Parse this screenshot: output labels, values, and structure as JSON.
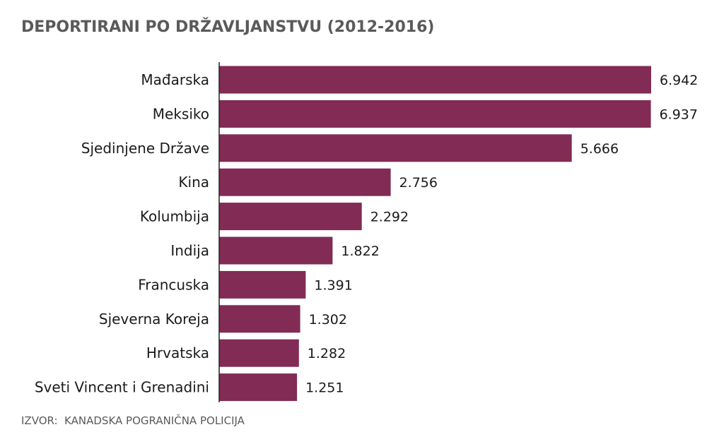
{
  "chart_data": {
    "type": "bar",
    "orientation": "horizontal",
    "title": "DEPORTIRANI PO DRŽAVLJANSTVU (2012-2016)",
    "categories": [
      "Mađarska",
      "Meksiko",
      "Sjedinjene Države",
      "Kina",
      "Kolumbija",
      "Indija",
      "Francuska",
      "Sjeverna Koreja",
      "Hrvatska",
      "Sveti Vincent i Grenadini"
    ],
    "values": [
      6942,
      6937,
      5666,
      2756,
      2292,
      1822,
      1391,
      1302,
      1282,
      1251
    ],
    "value_labels": [
      "6.942",
      "6.937",
      "5.666",
      "2.756",
      "2.292",
      "1.822",
      "1.391",
      "1.302",
      "1.282",
      "1.251"
    ],
    "xlim": [
      0,
      6942
    ],
    "xlabel": "",
    "ylabel": "",
    "grid": false,
    "bar_color": "#812b55",
    "source": "IZVOR:  KANADSKA POGRANIČNA POLICIJA"
  }
}
